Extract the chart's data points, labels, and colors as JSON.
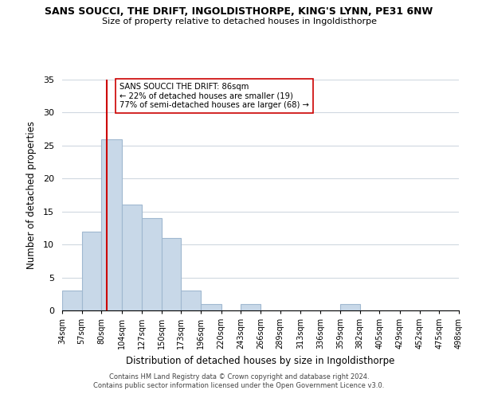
{
  "title": "SANS SOUCCI, THE DRIFT, INGOLDISTHORPE, KING'S LYNN, PE31 6NW",
  "subtitle": "Size of property relative to detached houses in Ingoldisthorpe",
  "xlabel": "Distribution of detached houses by size in Ingoldisthorpe",
  "ylabel": "Number of detached properties",
  "bins": [
    34,
    57,
    80,
    104,
    127,
    150,
    173,
    196,
    220,
    243,
    266,
    289,
    313,
    336,
    359,
    382,
    405,
    429,
    452,
    475,
    498
  ],
  "counts": [
    3,
    12,
    26,
    16,
    14,
    11,
    3,
    1,
    0,
    1,
    0,
    0,
    0,
    0,
    1,
    0,
    0,
    0,
    0,
    0
  ],
  "bar_color": "#c8d8e8",
  "bar_edgecolor": "#a0b8d0",
  "vline_x": 86,
  "vline_color": "#cc0000",
  "ylim": [
    0,
    35
  ],
  "yticks": [
    0,
    5,
    10,
    15,
    20,
    25,
    30,
    35
  ],
  "annotation_text": "SANS SOUCCI THE DRIFT: 86sqm\n← 22% of detached houses are smaller (19)\n77% of semi-detached houses are larger (68) →",
  "footer_line1": "Contains HM Land Registry data © Crown copyright and database right 2024.",
  "footer_line2": "Contains public sector information licensed under the Open Government Licence v3.0.",
  "tick_labels": [
    "34sqm",
    "57sqm",
    "80sqm",
    "104sqm",
    "127sqm",
    "150sqm",
    "173sqm",
    "196sqm",
    "220sqm",
    "243sqm",
    "266sqm",
    "289sqm",
    "313sqm",
    "336sqm",
    "359sqm",
    "382sqm",
    "405sqm",
    "429sqm",
    "452sqm",
    "475sqm",
    "498sqm"
  ],
  "background_color": "#ffffff",
  "grid_color": "#d0d8e0"
}
